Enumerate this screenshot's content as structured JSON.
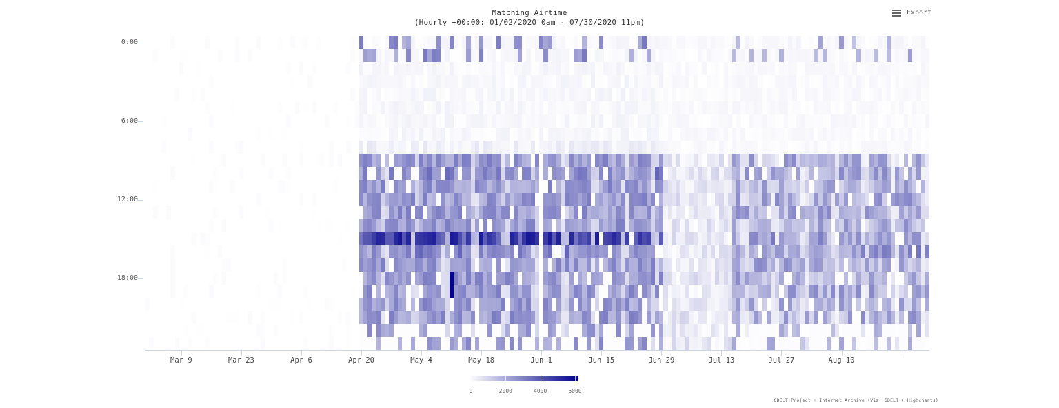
{
  "title": {
    "line1": "Matching Airtime",
    "line2": "(Hourly +00:00: 01/02/2020 0am - 07/30/2020 11pm)"
  },
  "export": {
    "label": "Export",
    "icon": "hamburger-menu-icon"
  },
  "credits": "GDELT Project + Internet Archive (Viz: GDELT + Highcharts)",
  "colors": {
    "min": "#ffffff",
    "max": "#00008b",
    "axis": "#ccd6eb"
  },
  "chart_data": {
    "type": "heatmap",
    "title": "Matching Airtime",
    "subtitle": "(Hourly +00:00: 01/02/2020 0am - 07/30/2020 11pm)",
    "xlabel": "",
    "ylabel": "",
    "x_range": [
      "Mar 1",
      "Aug 30"
    ],
    "x_ticks": [
      "Mar 9",
      "Mar 23",
      "Apr 6",
      "Apr 20",
      "May 4",
      "May 18",
      "Jun 1",
      "Jun 15",
      "Jun 29",
      "Jul 13",
      "Jul 27",
      "Aug 10",
      ""
    ],
    "y_ticks": [
      "0:00",
      "6:00",
      "12:00",
      "18:00"
    ],
    "y_range": [
      0,
      23
    ],
    "colorAxis": {
      "min": 0,
      "max": 6200,
      "ticks": [
        0,
        2000,
        4000,
        6000
      ],
      "minColor": "#ffffff",
      "maxColor": "#00008b"
    },
    "legend_position": "bottom-center",
    "grid": false,
    "description": "Hours 0-23 (rows) by day (columns). Near-zero values Mar 1 - Apr 19; heavy activity (approx 1500-3500) from Apr 21 to Jun 28 in hours 9-23 with peak band at hour 15 (approx 3500-5500) and isolated peaks up to ~6000 near May 11 hour 19; sparse spikes at hours 0-1 on weekdays; gap around Jun 29 - Jul 13 with light values; renewed moderate activity (approx 800-3000) from Jul 16 to Aug 30 in hours 9-23.",
    "periods": [
      {
        "start": "Mar 1",
        "end": "Apr 19",
        "hours": "all",
        "level": "near-zero (0-150)"
      },
      {
        "start": "Apr 20",
        "end": "May 31",
        "hours": "9-23",
        "level": "1500-3500, peak row 15 ~4000-5500"
      },
      {
        "start": "Jun 1",
        "end": "Jun 28",
        "hours": "9-23",
        "level": "1500-3500, peak row 15 ~4500-6000"
      },
      {
        "start": "Jun 29",
        "end": "Jul 13",
        "hours": "9-23",
        "level": "100-1000"
      },
      {
        "start": "Jul 14",
        "end": "Aug 30",
        "hours": "9-23",
        "level": "800-3000"
      },
      {
        "start": "Apr 21",
        "end": "Aug 30",
        "hours": "0-1",
        "level": "sparse spikes ~1500-3000"
      }
    ]
  },
  "axis": {
    "y": [
      {
        "label": "0:00",
        "row": 0
      },
      {
        "label": "6:00",
        "row": 6
      },
      {
        "label": "12:00",
        "row": 12
      },
      {
        "label": "18:00",
        "row": 18
      }
    ],
    "x": [
      {
        "label": "Mar 9",
        "day": 8
      },
      {
        "label": "Mar 23",
        "day": 22
      },
      {
        "label": "Apr 6",
        "day": 36
      },
      {
        "label": "Apr 20",
        "day": 50
      },
      {
        "label": "May 4",
        "day": 64
      },
      {
        "label": "May 18",
        "day": 78
      },
      {
        "label": "Jun 1",
        "day": 92
      },
      {
        "label": "Jun 15",
        "day": 106
      },
      {
        "label": "Jun 29",
        "day": 120
      },
      {
        "label": "Jul 13",
        "day": 134
      },
      {
        "label": "Jul 27",
        "day": 148
      },
      {
        "label": "Aug 10",
        "day": 162
      },
      {
        "label": "",
        "day": 176
      }
    ]
  },
  "legend": {
    "labels": [
      {
        "text": "0",
        "value": 0
      },
      {
        "text": "2000",
        "value": 2000
      },
      {
        "text": "4000",
        "value": 4000
      },
      {
        "text": "6000",
        "value": 6000
      }
    ]
  }
}
